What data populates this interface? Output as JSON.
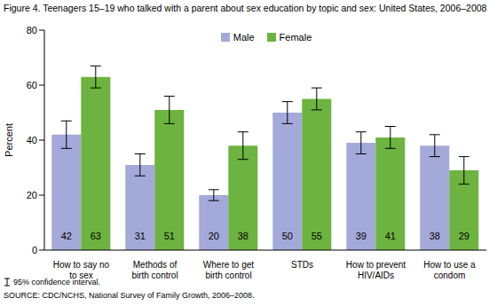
{
  "chart_data": {
    "type": "bar",
    "title": "Figure 4. Teenagers 15–19 who talked with a parent about sex education by topic and sex: United States, 2006–2008",
    "y_label": "Percent",
    "categories": [
      "How to say no to sex",
      "Methods of birth control",
      "Where to get birth control",
      "STDs",
      "How to prevent HIV/AIDs",
      "How to use a condom"
    ],
    "series": [
      {
        "name": "Male",
        "color": "#a3a9d9",
        "values": [
          42,
          31,
          20,
          50,
          39,
          38
        ],
        "error": [
          5,
          4,
          2,
          4,
          4,
          4
        ]
      },
      {
        "name": "Female",
        "color": "#6db33f",
        "values": [
          63,
          51,
          38,
          55,
          41,
          29
        ],
        "error": [
          4,
          5,
          5,
          4,
          4,
          5
        ]
      }
    ],
    "ylim": [
      0,
      80
    ],
    "yticks": [
      0,
      20,
      40,
      60,
      80
    ],
    "grid": false,
    "legend": "top",
    "data_labels": true,
    "notes": [
      "95% confidence interval.",
      "SOURCE: CDC/NCHS, National Survey of Family Growth, 2006–2008."
    ]
  }
}
